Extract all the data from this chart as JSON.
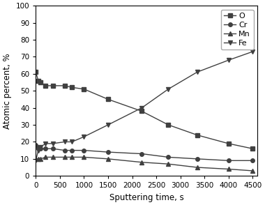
{
  "O_x": [
    0,
    50,
    100,
    200,
    350,
    600,
    750,
    1000,
    1500,
    2200,
    2750,
    3350,
    4000,
    4500
  ],
  "O_y": [
    61,
    56,
    55,
    53,
    53,
    53,
    52,
    51,
    45,
    38,
    30,
    24,
    19,
    16
  ],
  "Cr_x": [
    0,
    50,
    100,
    200,
    350,
    600,
    750,
    1000,
    1500,
    2200,
    2750,
    3350,
    4000,
    4500
  ],
  "Cr_y": [
    18,
    17,
    16,
    16,
    16,
    15,
    15,
    15,
    14,
    13,
    11,
    10,
    9,
    9
  ],
  "Mn_x": [
    0,
    50,
    100,
    200,
    350,
    600,
    750,
    1000,
    1500,
    2200,
    2750,
    3350,
    4000,
    4500
  ],
  "Mn_y": [
    10,
    10,
    10,
    11,
    11,
    11,
    11,
    11,
    10,
    8,
    7,
    5,
    4,
    3
  ],
  "Fe_x": [
    0,
    50,
    100,
    200,
    350,
    600,
    750,
    1000,
    1500,
    2200,
    2750,
    3350,
    4000,
    4500
  ],
  "Fe_y": [
    9,
    15,
    17,
    19,
    19,
    20,
    20,
    23,
    30,
    40,
    51,
    61,
    68,
    73
  ],
  "xlabel": "Sputtering time, s",
  "ylabel": "Atomic percent, %",
  "xlim": [
    0,
    4600
  ],
  "ylim": [
    0,
    100
  ],
  "xticks": [
    0,
    500,
    1000,
    1500,
    2000,
    2500,
    3000,
    3500,
    4000,
    4500
  ],
  "yticks": [
    0,
    10,
    20,
    30,
    40,
    50,
    60,
    70,
    80,
    90,
    100
  ],
  "xtick_labels": [
    "0",
    "500",
    "1000",
    "1500",
    "2000",
    "2500",
    "3000",
    "3500",
    "4000",
    "4500"
  ],
  "ytick_labels": [
    "0",
    "10",
    "20",
    "30",
    "40",
    "50",
    "60",
    "70",
    "80",
    "90",
    "100"
  ],
  "legend_labels": [
    "O",
    "Cr",
    "Mn",
    "Fe"
  ],
  "line_color": "#404040",
  "bg_color": "#ffffff",
  "marker_size": 4,
  "linewidth": 1.0,
  "tick_fontsize": 7.5,
  "label_fontsize": 8.5,
  "legend_fontsize": 8
}
